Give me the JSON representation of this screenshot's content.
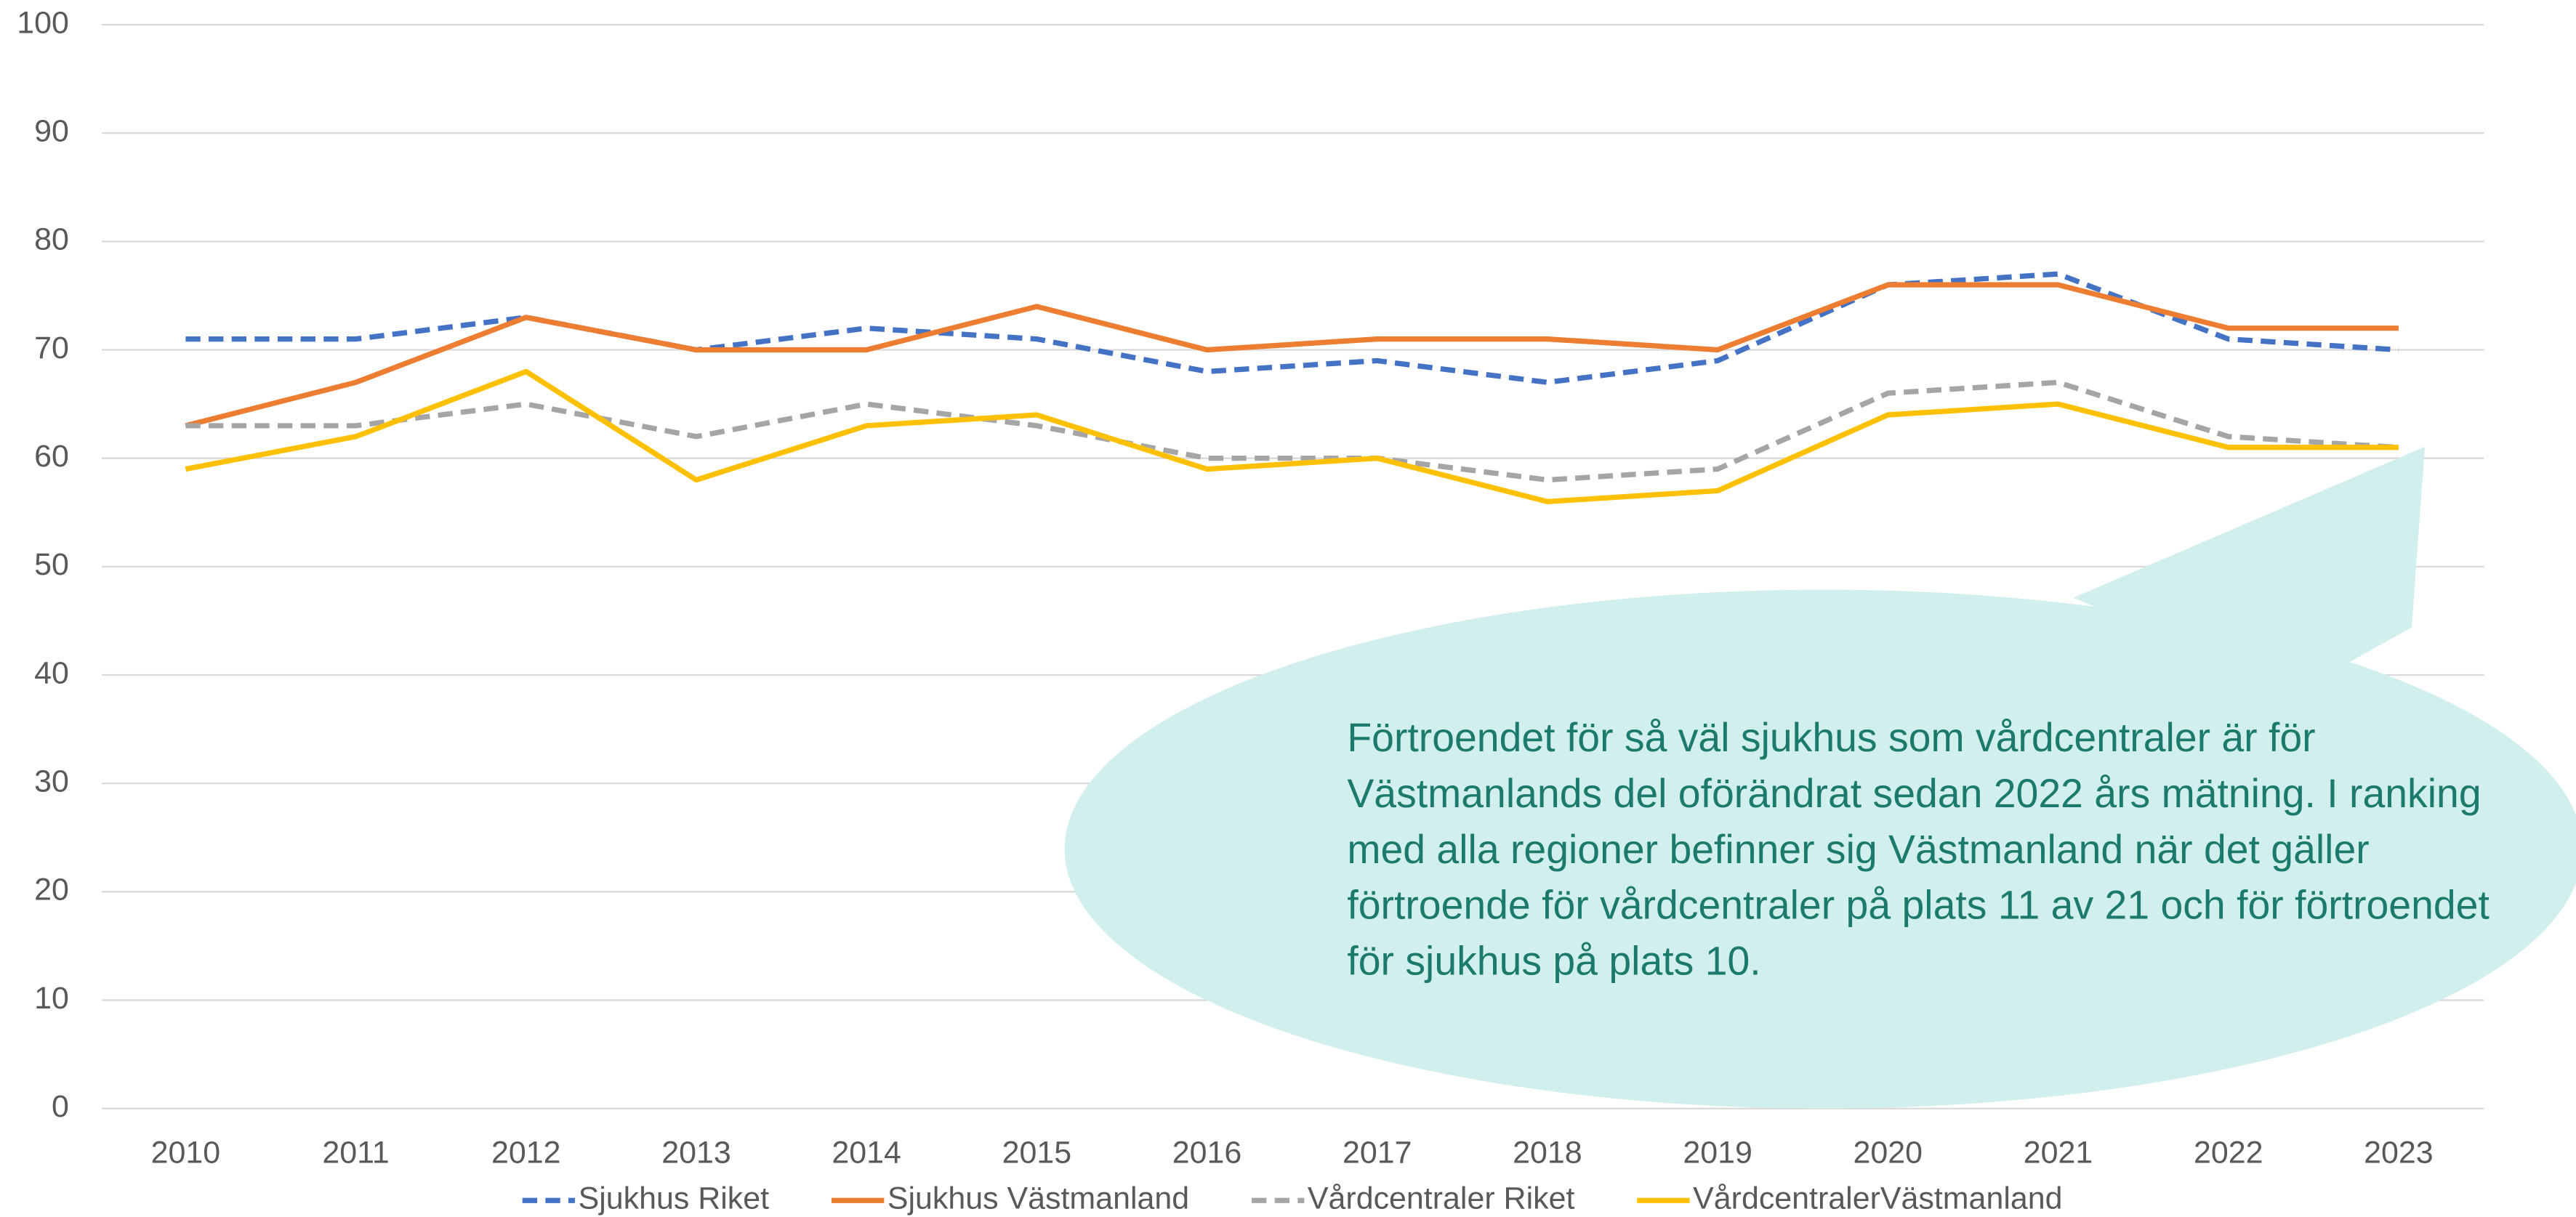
{
  "chart_data": {
    "type": "line",
    "categories": [
      "2010",
      "2011",
      "2012",
      "2013",
      "2014",
      "2015",
      "2016",
      "2017",
      "2018",
      "2019",
      "2020",
      "2021",
      "2022",
      "2023"
    ],
    "series": [
      {
        "name": "Sjukhus Riket",
        "color": "#4472c4",
        "dash": true,
        "values": [
          71,
          71,
          73,
          70,
          72,
          71,
          68,
          69,
          67,
          69,
          76,
          77,
          71,
          70
        ]
      },
      {
        "name": "Sjukhus Västmanland",
        "color": "#ed7d31",
        "dash": false,
        "values": [
          63,
          67,
          73,
          70,
          70,
          74,
          70,
          71,
          71,
          70,
          76,
          76,
          72,
          72
        ]
      },
      {
        "name": "Vårdcentraler Riket",
        "color": "#a5a5a5",
        "dash": true,
        "values": [
          63,
          63,
          65,
          62,
          65,
          63,
          60,
          60,
          58,
          59,
          66,
          67,
          62,
          61
        ]
      },
      {
        "name": "VårdcentralerVästmanland",
        "color": "#ffc000",
        "dash": false,
        "values": [
          59,
          62,
          68,
          58,
          63,
          64,
          59,
          60,
          56,
          57,
          64,
          65,
          61,
          61
        ]
      }
    ],
    "ylim": [
      0,
      100
    ],
    "yticks": [
      0,
      10,
      20,
      30,
      40,
      50,
      60,
      70,
      80,
      90,
      100
    ],
    "grid": true,
    "legend": "bottom",
    "annotation_lines": [
      "Förtroendet för så väl sjukhus som vårdcentraler är för",
      "Västmanlands del oförändrat sedan 2022 års mätning. I ranking",
      "med alla regioner befinner sig Västmanland när det gäller",
      "förtroende för vårdcentraler på plats 11 av 21 och för förtroendet",
      "för sjukhus på plats 10."
    ]
  }
}
